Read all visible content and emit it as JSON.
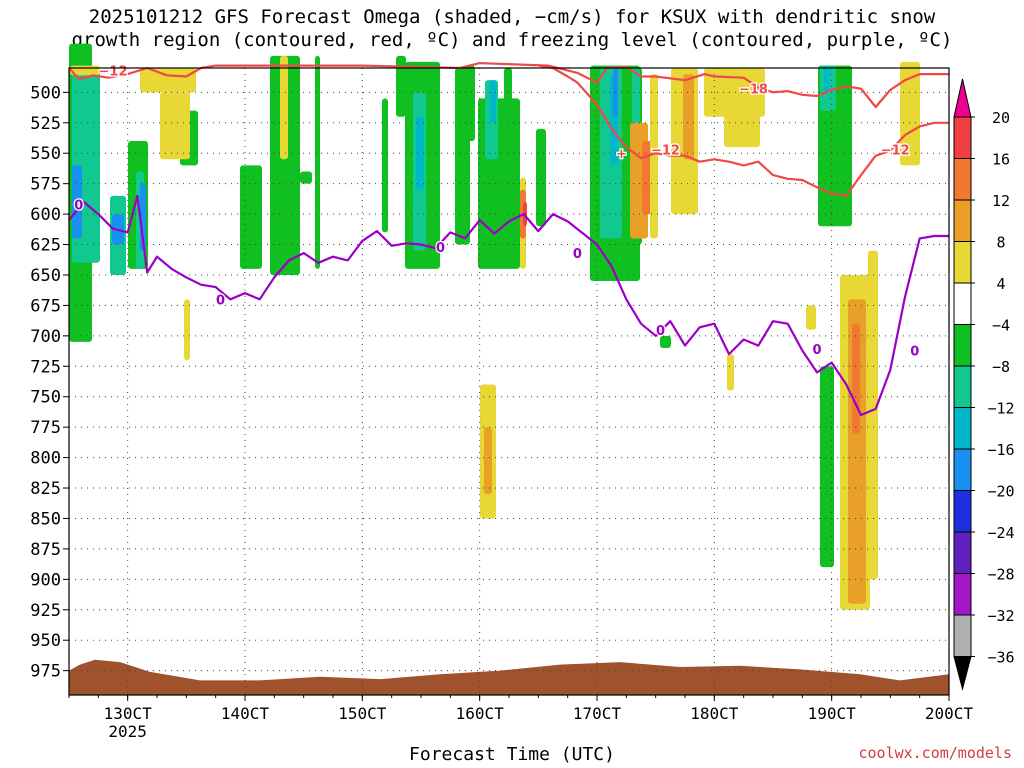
{
  "title": {
    "line1": "2025101212 GFS Forecast Omega (shaded, −cm/s) for KSUX with dendritic snow",
    "line2": "growth region (contoured, red, ºC) and freezing level (contoured, purple, ºC)"
  },
  "footer": {
    "credit": "coolwx.com/models"
  },
  "chart_data": {
    "type": "heatmap",
    "xlabel": "Forecast Time (UTC)",
    "x_ticks": [
      "130CT",
      "140CT",
      "150CT",
      "160CT",
      "170CT",
      "180CT",
      "190CT",
      "200CT"
    ],
    "x_year_label": "2025",
    "x_range": [
      "2025-10-12T12",
      "2025-10-20T00"
    ],
    "y_ticks": [
      500,
      525,
      550,
      575,
      600,
      625,
      650,
      675,
      700,
      725,
      750,
      775,
      800,
      825,
      850,
      875,
      900,
      925,
      950,
      975
    ],
    "y_range": [
      480,
      995
    ],
    "y_unit": "hPa",
    "grid": true,
    "colorbar": {
      "levels": [
        "20",
        "16",
        "12",
        "8",
        "4",
        "−4",
        "−8",
        "−12",
        "−16",
        "−20",
        "−24",
        "−28",
        "−32",
        "−36"
      ],
      "colors": [
        "#ee0090",
        "#f04040",
        "#f07830",
        "#e8a028",
        "#e8d836",
        "#ffffff",
        "#10c020",
        "#10c890",
        "#00b8c8",
        "#1890f0",
        "#1c30e0",
        "#6020c0",
        "#a018c8",
        "#b0b0b0",
        "#000000"
      ]
    },
    "contour_labels": {
      "freezing_level": "0",
      "dendritic_top": "−18",
      "dendritic_bottom": "−12"
    },
    "freezing_level": {
      "color": "#9b00c8",
      "points": [
        [
          "12-12",
          605
        ],
        [
          "12-15",
          590
        ],
        [
          "12-18",
          600
        ],
        [
          "12-21",
          612
        ],
        [
          "13-00",
          615
        ],
        [
          "13-02",
          585
        ],
        [
          "13-04",
          648
        ],
        [
          "13-06",
          635
        ],
        [
          "13-09",
          645
        ],
        [
          "13-12",
          652
        ],
        [
          "13-15",
          658
        ],
        [
          "13-18",
          660
        ],
        [
          "13-21",
          670
        ],
        [
          "14-00",
          665
        ],
        [
          "14-03",
          670
        ],
        [
          "14-06",
          652
        ],
        [
          "14-09",
          638
        ],
        [
          "14-12",
          632
        ],
        [
          "14-15",
          640
        ],
        [
          "14-18",
          635
        ],
        [
          "14-21",
          638
        ],
        [
          "15-00",
          622
        ],
        [
          "15-03",
          614
        ],
        [
          "15-06",
          626
        ],
        [
          "15-09",
          624
        ],
        [
          "15-12",
          625
        ],
        [
          "15-15",
          628
        ],
        [
          "15-18",
          615
        ],
        [
          "15-21",
          620
        ],
        [
          "16-00",
          605
        ],
        [
          "16-03",
          616
        ],
        [
          "16-06",
          606
        ],
        [
          "16-09",
          600
        ],
        [
          "16-12",
          614
        ],
        [
          "16-15",
          600
        ],
        [
          "16-18",
          606
        ],
        [
          "17-00",
          625
        ],
        [
          "17-03",
          643
        ],
        [
          "17-06",
          670
        ],
        [
          "17-09",
          690
        ],
        [
          "17-12",
          700
        ],
        [
          "17-15",
          688
        ],
        [
          "17-18",
          708
        ],
        [
          "17-21",
          693
        ],
        [
          "18-00",
          690
        ],
        [
          "18-03",
          715
        ],
        [
          "18-06",
          703
        ],
        [
          "18-09",
          708
        ],
        [
          "18-12",
          688
        ],
        [
          "18-15",
          690
        ],
        [
          "18-18",
          712
        ],
        [
          "18-21",
          730
        ],
        [
          "19-00",
          722
        ],
        [
          "19-03",
          740
        ],
        [
          "19-06",
          765
        ],
        [
          "19-09",
          760
        ],
        [
          "19-12",
          728
        ],
        [
          "19-15",
          668
        ],
        [
          "19-18",
          620
        ],
        [
          "19-21",
          618
        ],
        [
          "20-00",
          618
        ]
      ]
    },
    "dendritic_top_m18": {
      "color": "#f04848",
      "points": [
        [
          "12-12",
          480
        ],
        [
          "12-14",
          489
        ],
        [
          "12-17",
          486
        ],
        [
          "12-20",
          488
        ],
        [
          "13-00",
          485
        ],
        [
          "13-04",
          480
        ],
        [
          "13-08",
          486
        ],
        [
          "13-12",
          487
        ],
        [
          "13-15",
          480
        ],
        [
          "13-18",
          478
        ],
        [
          "14-00",
          478
        ],
        [
          "15-00",
          478
        ],
        [
          "15-20",
          480
        ],
        [
          "16-00",
          476
        ],
        [
          "16-14",
          478
        ],
        [
          "16-18",
          482
        ],
        [
          "16-20",
          484
        ],
        [
          "17-00",
          492
        ],
        [
          "17-02",
          480
        ],
        [
          "17-06",
          479
        ],
        [
          "17-09",
          487
        ],
        [
          "17-12",
          487
        ],
        [
          "17-18",
          490
        ],
        [
          "17-22",
          485
        ],
        [
          "18-00",
          487
        ],
        [
          "18-06",
          488
        ],
        [
          "18-09",
          496
        ],
        [
          "18-12",
          500
        ],
        [
          "18-15",
          499
        ],
        [
          "18-18",
          502
        ],
        [
          "18-21",
          503
        ],
        [
          "19-00",
          498
        ],
        [
          "19-03",
          495
        ],
        [
          "19-06",
          497
        ],
        [
          "19-09",
          512
        ],
        [
          "19-12",
          498
        ],
        [
          "19-15",
          490
        ],
        [
          "19-18",
          485
        ],
        [
          "19-21",
          485
        ],
        [
          "20-00",
          485
        ]
      ]
    },
    "dendritic_bottom_m12": {
      "color": "#f04848",
      "points": [
        [
          "16-12",
          478
        ],
        [
          "16-15",
          480
        ],
        [
          "16-18",
          487
        ],
        [
          "16-20",
          492
        ],
        [
          "17-00",
          510
        ],
        [
          "17-03",
          530
        ],
        [
          "17-06",
          545
        ],
        [
          "17-09",
          554
        ],
        [
          "17-12",
          550
        ],
        [
          "17-15",
          552
        ],
        [
          "17-18",
          552
        ],
        [
          "17-21",
          557
        ],
        [
          "18-00",
          555
        ],
        [
          "18-03",
          557
        ],
        [
          "18-06",
          560
        ],
        [
          "18-09",
          557
        ],
        [
          "18-12",
          568
        ],
        [
          "18-15",
          571
        ],
        [
          "18-18",
          572
        ],
        [
          "18-21",
          578
        ],
        [
          "19-00",
          583
        ],
        [
          "19-03",
          585
        ],
        [
          "19-06",
          568
        ],
        [
          "19-09",
          552
        ],
        [
          "19-12",
          548
        ],
        [
          "19-15",
          535
        ],
        [
          "19-18",
          528
        ],
        [
          "19-21",
          525
        ],
        [
          "20-00",
          525
        ]
      ]
    },
    "terrain_color": "#a0522d"
  }
}
